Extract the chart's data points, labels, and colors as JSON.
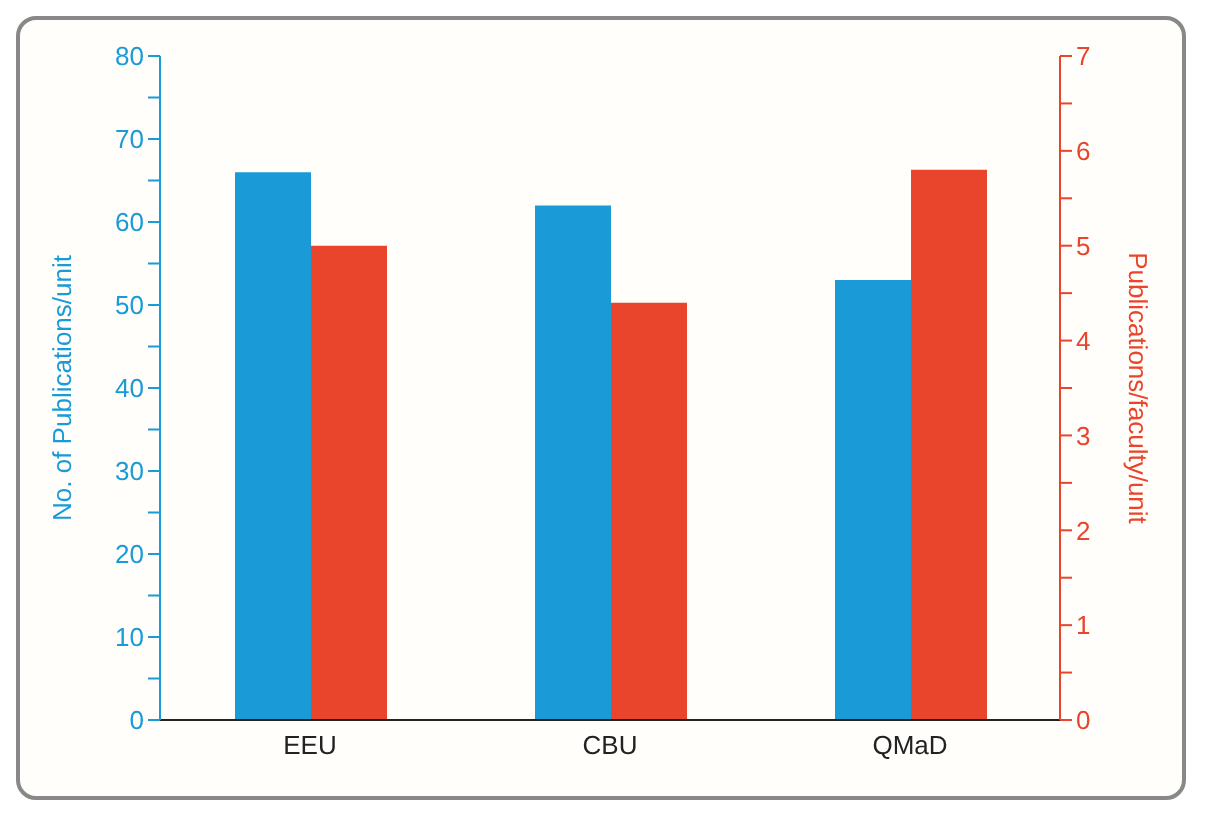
{
  "chart_data": {
    "type": "bar",
    "categories": [
      "EEU",
      "CBU",
      "QMaD"
    ],
    "series": [
      {
        "color": "#1a9ad6",
        "values": [
          66,
          62,
          53
        ]
      },
      {
        "color": "#e8452c",
        "values": [
          5.0,
          4.4,
          5.8
        ],
        "axis": "y2"
      }
    ],
    "ylabel": "No. of Publications/unit",
    "y2label": "Publications/faculty/unit",
    "ylim": [
      0,
      80
    ],
    "yticks": [
      0,
      {
        "value": 5,
        "label": null
      },
      10,
      {
        "value": 15,
        "label": null
      },
      20,
      {
        "value": 25,
        "label": null
      },
      30,
      {
        "value": 35,
        "label": null
      },
      40,
      {
        "value": 45,
        "label": null
      },
      50,
      {
        "value": 55,
        "label": null
      },
      60,
      {
        "value": 65,
        "label": null
      },
      70,
      {
        "value": 75,
        "label": null
      },
      80
    ],
    "y2lim": [
      0,
      7
    ],
    "y2ticks": [
      0,
      {
        "value": 0.5,
        "label": null
      },
      1,
      {
        "value": 1.5,
        "label": null
      },
      2,
      {
        "value": 2.5,
        "label": null
      },
      3,
      {
        "value": 3.5,
        "label": null
      },
      4,
      {
        "value": 4.5,
        "label": null
      },
      5,
      {
        "value": 5.5,
        "label": null
      },
      6,
      {
        "value": 6.5,
        "label": null
      },
      7
    ],
    "grid": false,
    "legend": false
  }
}
